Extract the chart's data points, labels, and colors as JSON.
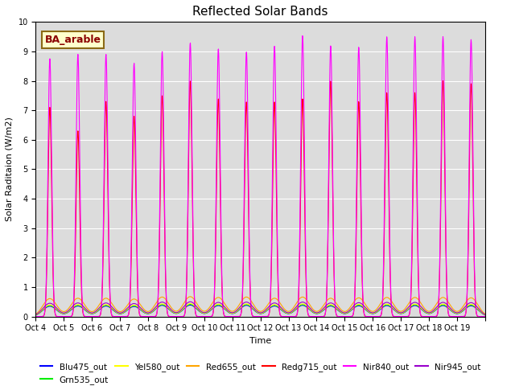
{
  "title": "Reflected Solar Bands",
  "xlabel": "Time",
  "ylabel": "Solar Raditaion (W/m2)",
  "annotation": "BA_arable",
  "ylim": [
    0,
    10.0
  ],
  "background_color": "#dcdcdc",
  "series": [
    {
      "label": "Blu475_out",
      "color": "#0000ff",
      "type": "low",
      "scale": 0.155
    },
    {
      "label": "Grn535_out",
      "color": "#00ee00",
      "type": "low",
      "scale": 0.165
    },
    {
      "label": "Yel580_out",
      "color": "#ffff00",
      "type": "low",
      "scale": 0.175
    },
    {
      "label": "Red655_out",
      "color": "#ffa500",
      "type": "low",
      "scale": 0.27
    },
    {
      "label": "Redg715_out",
      "color": "#ff0000",
      "type": "high",
      "scale": 1.0
    },
    {
      "label": "Nir840_out",
      "color": "#ff00ff",
      "type": "high",
      "scale": 1.0
    },
    {
      "label": "Nir945_out",
      "color": "#9900cc",
      "type": "low",
      "scale": 0.2
    }
  ],
  "day_peaks_nir840": [
    8.75,
    8.9,
    8.9,
    8.6,
    9.0,
    9.3,
    9.1,
    9.0,
    9.2,
    9.55,
    9.2,
    9.15,
    9.5,
    9.5,
    9.5,
    9.4
  ],
  "day_peaks_redg715": [
    7.1,
    6.3,
    7.3,
    6.8,
    7.5,
    8.0,
    7.4,
    7.3,
    7.3,
    7.4,
    8.0,
    7.3,
    7.6,
    7.6,
    8.0,
    7.9
  ],
  "day_peaks_low": [
    2.25,
    2.3,
    2.3,
    2.2,
    2.45,
    2.5,
    2.4,
    2.45,
    2.3,
    2.45,
    2.3,
    2.35,
    2.4,
    2.4,
    2.4,
    2.35
  ],
  "xtick_labels": [
    "Oct 4",
    "Oct 5",
    "Oct 6",
    "Oct 7",
    "Oct 8",
    "Oct 9",
    "Oct 10",
    "Oct 11",
    "Oct 12",
    "Oct 13",
    "Oct 14",
    "Oct 15",
    "Oct 16",
    "Oct 17",
    "Oct 18",
    "Oct 19"
  ],
  "num_days": 16,
  "samples_per_day": 96,
  "high_sharpness": 120,
  "low_sharpness": 8
}
